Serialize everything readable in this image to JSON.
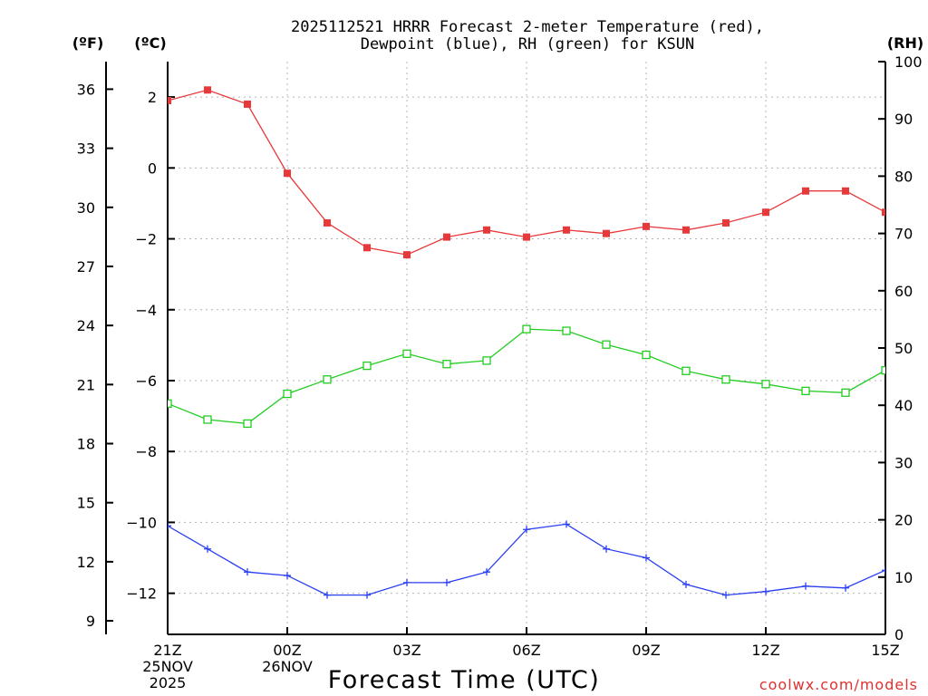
{
  "chart_data": {
    "type": "line",
    "title_line1": "2025112521 HRRR Forecast 2-meter Temperature (red),",
    "title_line2": "Dewpoint (blue), RH (green) for KSUN",
    "xlabel": "Forecast Time (UTC)",
    "credit": "coolwx.com/models",
    "unit_labels": {
      "fahrenheit": "(ºF)",
      "celsius": "(ºC)",
      "rh": "(RH)"
    },
    "celsius_axis": {
      "ylim": [
        -13.16,
        3.0
      ],
      "ticks": [
        "2",
        "0",
        "−2",
        "−4",
        "−6",
        "−8",
        "−10",
        "−12"
      ],
      "tick_values": [
        2,
        0,
        -2,
        -4,
        -6,
        -8,
        -10,
        -12
      ]
    },
    "fahrenheit_axis": {
      "ticks": [
        "36",
        "33",
        "30",
        "27",
        "24",
        "21",
        "18",
        "15",
        "12",
        "9"
      ],
      "tick_values": [
        36,
        33,
        30,
        27,
        24,
        21,
        18,
        15,
        12,
        9
      ]
    },
    "rh_axis": {
      "ylim": [
        0,
        100
      ],
      "ticks": [
        "100",
        "90",
        "80",
        "70",
        "60",
        "50",
        "40",
        "30",
        "20",
        "10",
        "0"
      ],
      "tick_values": [
        100,
        90,
        80,
        70,
        60,
        50,
        40,
        30,
        20,
        10,
        0
      ]
    },
    "x_ticks": [
      {
        "hour": 0,
        "label": "21Z",
        "sub1": "25NOV",
        "sub2": "2025"
      },
      {
        "hour": 3,
        "label": "00Z",
        "sub1": "26NOV",
        "sub2": ""
      },
      {
        "hour": 6,
        "label": "03Z",
        "sub1": "",
        "sub2": ""
      },
      {
        "hour": 9,
        "label": "06Z",
        "sub1": "",
        "sub2": ""
      },
      {
        "hour": 12,
        "label": "09Z",
        "sub1": "",
        "sub2": ""
      },
      {
        "hour": 15,
        "label": "12Z",
        "sub1": "",
        "sub2": ""
      },
      {
        "hour": 18,
        "label": "15Z",
        "sub1": "",
        "sub2": ""
      }
    ],
    "x_range": [
      0,
      18
    ],
    "series": [
      {
        "name": "Temperature (°C)",
        "axis": "celsius",
        "color": "#e8383a",
        "marker": "filled-square",
        "x": [
          0,
          1,
          2,
          3,
          4,
          5,
          6,
          7,
          8,
          9,
          10,
          11,
          12,
          13,
          14,
          15,
          16,
          17,
          18
        ],
        "values": [
          1.9,
          2.2,
          1.8,
          -0.15,
          -1.55,
          -2.25,
          -2.45,
          -1.95,
          -1.75,
          -1.95,
          -1.75,
          -1.85,
          -1.65,
          -1.75,
          -1.55,
          -1.25,
          -0.65,
          -0.65,
          -1.25
        ]
      },
      {
        "name": "RH (%)",
        "axis": "rh",
        "color": "#22cc22",
        "marker": "open-square",
        "x": [
          0,
          1,
          2,
          3,
          4,
          5,
          6,
          7,
          8,
          9,
          10,
          11,
          12,
          13,
          14,
          15,
          16,
          17,
          18
        ],
        "values": [
          40.3,
          37.5,
          36.8,
          42.0,
          44.5,
          46.9,
          49.0,
          47.2,
          47.8,
          53.3,
          53.0,
          50.6,
          48.8,
          46.0,
          44.5,
          43.7,
          42.5,
          42.2,
          46.1
        ]
      },
      {
        "name": "Dewpoint (°C)",
        "axis": "celsius",
        "color": "#2a3ff0",
        "marker": "plus",
        "x": [
          0,
          1,
          2,
          3,
          4,
          5,
          6,
          7,
          8,
          9,
          10,
          11,
          12,
          13,
          14,
          15,
          16,
          17,
          18
        ],
        "values": [
          -10.1,
          -10.75,
          -11.4,
          -11.5,
          -12.05,
          -12.05,
          -11.7,
          -11.7,
          -11.4,
          -10.2,
          -10.05,
          -10.75,
          -11.0,
          -11.75,
          -12.05,
          -11.95,
          -11.8,
          -11.85,
          -11.35
        ]
      }
    ]
  }
}
